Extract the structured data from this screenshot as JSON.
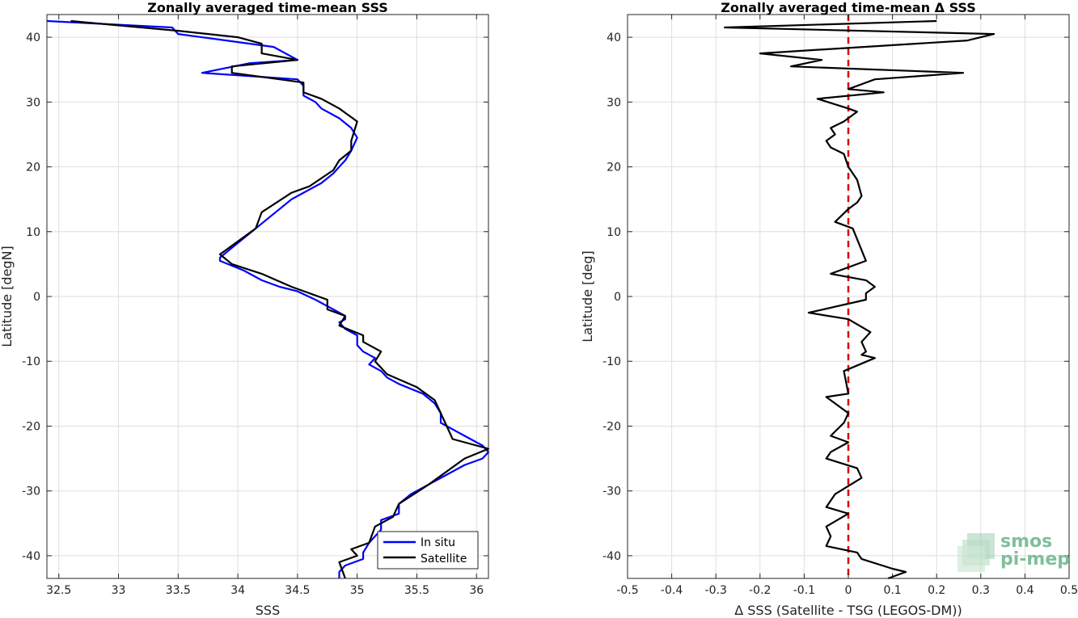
{
  "chart_data": [
    {
      "type": "line",
      "title": "Zonally averaged time-mean SSS",
      "xlabel": "SSS",
      "ylabel": "Latitude [degN]",
      "xlim": [
        32.4,
        36.1
      ],
      "ylim": [
        -43.5,
        43.5
      ],
      "xticks": [
        32.5,
        33,
        33.5,
        34,
        34.5,
        35,
        35.5,
        36
      ],
      "xtick_labels": [
        "32.5",
        "33",
        "33.5",
        "34",
        "34.5",
        "35",
        "35.5",
        "36"
      ],
      "yticks": [
        -40,
        -30,
        -20,
        -10,
        0,
        10,
        20,
        30,
        40
      ],
      "ytick_labels": [
        "-40",
        "-30",
        "-20",
        "-10",
        "0",
        "10",
        "20",
        "30",
        "40"
      ],
      "grid": true,
      "legend": "bottom-right",
      "series": [
        {
          "name": "In situ",
          "color": "#0000ff",
          "points": [
            [
              32.4,
              42.5
            ],
            [
              33.45,
              41.5
            ],
            [
              33.5,
              40.5
            ],
            [
              34.3,
              38.5
            ],
            [
              34.5,
              36.5
            ],
            [
              34.1,
              36
            ],
            [
              33.7,
              34.5
            ],
            [
              34.5,
              33.5
            ],
            [
              34.55,
              32.5
            ],
            [
              34.55,
              31
            ],
            [
              34.65,
              30
            ],
            [
              34.7,
              29
            ],
            [
              34.85,
              27.5
            ],
            [
              34.95,
              26
            ],
            [
              35.0,
              24.5
            ],
            [
              34.95,
              22.5
            ],
            [
              34.9,
              21
            ],
            [
              34.85,
              20
            ],
            [
              34.8,
              19
            ],
            [
              34.7,
              17.5
            ],
            [
              34.55,
              16
            ],
            [
              34.45,
              15
            ],
            [
              34.35,
              13.5
            ],
            [
              34.25,
              12
            ],
            [
              34.15,
              10.5
            ],
            [
              34.05,
              9
            ],
            [
              33.95,
              7.5
            ],
            [
              33.85,
              6
            ],
            [
              33.85,
              5.5
            ],
            [
              34.05,
              4
            ],
            [
              34.2,
              2.5
            ],
            [
              34.35,
              1.5
            ],
            [
              34.5,
              0.8
            ],
            [
              34.65,
              -0.5
            ],
            [
              34.8,
              -2
            ],
            [
              34.9,
              -3
            ],
            [
              34.9,
              -3.5
            ],
            [
              34.85,
              -4
            ],
            [
              34.9,
              -5
            ],
            [
              35.0,
              -6
            ],
            [
              35.0,
              -7.5
            ],
            [
              35.05,
              -8.5
            ],
            [
              35.15,
              -9.5
            ],
            [
              35.1,
              -10.5
            ],
            [
              35.2,
              -11.5
            ],
            [
              35.25,
              -12.5
            ],
            [
              35.35,
              -13.5
            ],
            [
              35.55,
              -15
            ],
            [
              35.65,
              -16.5
            ],
            [
              35.7,
              -18
            ],
            [
              35.7,
              -19.5
            ],
            [
              35.85,
              -21
            ],
            [
              36.05,
              -23
            ],
            [
              36.1,
              -24
            ],
            [
              36.05,
              -25
            ],
            [
              35.9,
              -26
            ],
            [
              35.75,
              -27.5
            ],
            [
              35.6,
              -29
            ],
            [
              35.45,
              -30.5
            ],
            [
              35.35,
              -32
            ],
            [
              35.35,
              -33.5
            ],
            [
              35.2,
              -34.5
            ],
            [
              35.2,
              -36
            ],
            [
              35.1,
              -38
            ],
            [
              35.05,
              -39.5
            ],
            [
              35.05,
              -40.5
            ],
            [
              34.9,
              -41.5
            ],
            [
              34.85,
              -42.5
            ],
            [
              34.85,
              -43.5
            ]
          ]
        },
        {
          "name": "Satellite",
          "color": "#000000",
          "points": [
            [
              32.6,
              42.5
            ],
            [
              33.5,
              41
            ],
            [
              34.0,
              40
            ],
            [
              34.2,
              39
            ],
            [
              34.2,
              37.5
            ],
            [
              34.5,
              36.5
            ],
            [
              33.95,
              35.5
            ],
            [
              33.95,
              34.5
            ],
            [
              34.55,
              33
            ],
            [
              34.55,
              31.5
            ],
            [
              34.7,
              30.5
            ],
            [
              34.85,
              29
            ],
            [
              35.0,
              27
            ],
            [
              34.95,
              24
            ],
            [
              34.95,
              22.5
            ],
            [
              34.85,
              21
            ],
            [
              34.8,
              19.5
            ],
            [
              34.6,
              17
            ],
            [
              34.45,
              16
            ],
            [
              34.2,
              13
            ],
            [
              34.15,
              10.5
            ],
            [
              33.85,
              6.5
            ],
            [
              33.95,
              5
            ],
            [
              34.2,
              3.5
            ],
            [
              34.45,
              1.5
            ],
            [
              34.75,
              -0.5
            ],
            [
              34.75,
              -2
            ],
            [
              34.9,
              -3
            ],
            [
              34.85,
              -4.5
            ],
            [
              35.05,
              -6
            ],
            [
              35.05,
              -7
            ],
            [
              35.2,
              -8.5
            ],
            [
              35.15,
              -10
            ],
            [
              35.25,
              -12
            ],
            [
              35.5,
              -14
            ],
            [
              35.65,
              -16
            ],
            [
              35.7,
              -18
            ],
            [
              35.75,
              -20
            ],
            [
              35.8,
              -22
            ],
            [
              36.1,
              -23.5
            ],
            [
              35.9,
              -25
            ],
            [
              35.6,
              -29
            ],
            [
              35.35,
              -32
            ],
            [
              35.3,
              -34
            ],
            [
              35.15,
              -35.5
            ],
            [
              35.1,
              -38
            ],
            [
              34.95,
              -39
            ],
            [
              35.0,
              -40
            ],
            [
              34.85,
              -41
            ],
            [
              34.9,
              -43.5
            ]
          ]
        }
      ]
    },
    {
      "type": "line",
      "title": "Zonally averaged time-mean Δ SSS",
      "xlabel": "Δ SSS (Satellite - TSG (LEGOS-DM))",
      "ylabel": "Latitude [deg]",
      "xlim": [
        -0.5,
        0.5
      ],
      "ylim": [
        -43.5,
        43.5
      ],
      "xticks": [
        -0.5,
        -0.4,
        -0.3,
        -0.2,
        -0.1,
        0,
        0.1,
        0.2,
        0.3,
        0.4,
        0.5
      ],
      "xtick_labels": [
        "-0.5",
        "-0.4",
        "-0.3",
        "-0.2",
        "-0.1",
        "0",
        "0.1",
        "0.2",
        "0.3",
        "0.4",
        "0.5"
      ],
      "yticks": [
        -40,
        -30,
        -20,
        -10,
        0,
        10,
        20,
        30,
        40
      ],
      "ytick_labels": [
        "-40",
        "-30",
        "-20",
        "-10",
        "0",
        "10",
        "20",
        "30",
        "40"
      ],
      "grid": true,
      "reference_line": {
        "x": 0,
        "color": "#dd0000",
        "style": "dashed"
      },
      "series": [
        {
          "color": "#000000",
          "points": [
            [
              0.2,
              42.5
            ],
            [
              -0.28,
              41.5
            ],
            [
              0.33,
              40.5
            ],
            [
              0.27,
              39.5
            ],
            [
              -0.2,
              37.5
            ],
            [
              -0.06,
              36.5
            ],
            [
              -0.13,
              35.5
            ],
            [
              0.26,
              34.5
            ],
            [
              0.06,
              33.5
            ],
            [
              0.0,
              32
            ],
            [
              0.08,
              31.5
            ],
            [
              -0.07,
              30.5
            ],
            [
              0.0,
              29
            ],
            [
              0.02,
              28.5
            ],
            [
              -0.01,
              27
            ],
            [
              -0.04,
              26
            ],
            [
              -0.03,
              25
            ],
            [
              -0.05,
              24
            ],
            [
              -0.04,
              23
            ],
            [
              -0.01,
              22
            ],
            [
              0.0,
              20
            ],
            [
              0.02,
              18
            ],
            [
              0.03,
              15.5
            ],
            [
              0.02,
              14.5
            ],
            [
              0.0,
              13.5
            ],
            [
              -0.03,
              11.5
            ],
            [
              0.01,
              10.5
            ],
            [
              0.04,
              5.5
            ],
            [
              -0.04,
              3.5
            ],
            [
              0.04,
              2.5
            ],
            [
              0.06,
              1.5
            ],
            [
              0.04,
              0.5
            ],
            [
              0.04,
              -0.5
            ],
            [
              -0.09,
              -2.5
            ],
            [
              0.0,
              -3.5
            ],
            [
              0.05,
              -5.5
            ],
            [
              0.03,
              -7
            ],
            [
              0.04,
              -8.5
            ],
            [
              0.03,
              -9
            ],
            [
              0.06,
              -9.5
            ],
            [
              -0.01,
              -11.5
            ],
            [
              0.0,
              -15
            ],
            [
              -0.05,
              -15.5
            ],
            [
              0.0,
              -18
            ],
            [
              -0.01,
              -19.5
            ],
            [
              -0.04,
              -21.5
            ],
            [
              0.0,
              -22.5
            ],
            [
              -0.04,
              -24
            ],
            [
              -0.05,
              -25
            ],
            [
              0.02,
              -26.5
            ],
            [
              0.03,
              -28
            ],
            [
              -0.03,
              -30.5
            ],
            [
              -0.05,
              -32.5
            ],
            [
              0.0,
              -33.5
            ],
            [
              -0.05,
              -35.5
            ],
            [
              -0.04,
              -37
            ],
            [
              -0.05,
              -38.5
            ],
            [
              0.02,
              -39.5
            ],
            [
              0.03,
              -40.5
            ],
            [
              0.1,
              -42
            ],
            [
              0.13,
              -42.5
            ],
            [
              0.09,
              -43.5
            ]
          ]
        }
      ]
    }
  ],
  "logo": {
    "line1": "smos",
    "line2": "pi-mep"
  }
}
